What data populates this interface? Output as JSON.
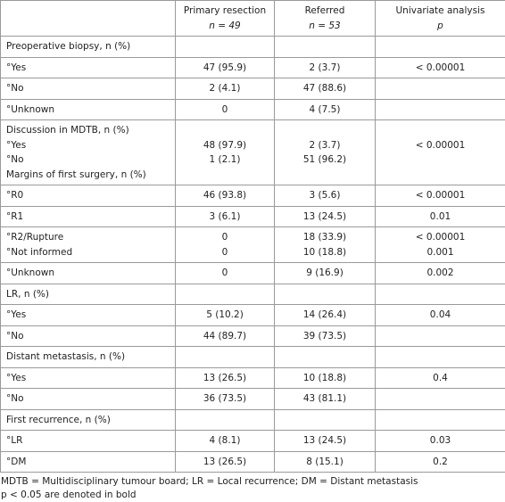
{
  "table": {
    "header": [
      [],
      [
        "Primary resection",
        "n = 49"
      ],
      [
        "Referred",
        "n = 53"
      ],
      [
        "Univariate analysis",
        "p"
      ]
    ],
    "rows": [
      [
        [
          "Preoperative biopsy, n (%)"
        ],
        [],
        [],
        []
      ],
      [
        [
          "°Yes"
        ],
        [
          "47 (95.9)"
        ],
        [
          "2 (3.7)"
        ],
        [
          "< 0.00001"
        ]
      ],
      [
        [
          "°No"
        ],
        [
          "2 (4.1)"
        ],
        [
          "47 (88.6)"
        ],
        []
      ],
      [
        [
          "°Unknown"
        ],
        [
          "0"
        ],
        [
          "4 (7.5)"
        ],
        []
      ],
      [
        [
          "Discussion in MDTB, n (%)",
          "°Yes",
          "°No",
          "Margins of first surgery, n (%)"
        ],
        [
          null,
          "48 (97.9)",
          "1 (2.1)"
        ],
        [
          null,
          "2 (3.7)",
          "51 (96.2)"
        ],
        [
          null,
          "< 0.00001"
        ]
      ],
      [
        [
          "°R0"
        ],
        [
          "46 (93.8)"
        ],
        [
          "3 (5.6)"
        ],
        [
          "< 0.00001"
        ]
      ],
      [
        [
          "°R1"
        ],
        [
          "3 (6.1)"
        ],
        [
          "13 (24.5)"
        ],
        [
          "0.01"
        ]
      ],
      [
        [
          "°R2/Rupture",
          "°Not informed"
        ],
        [
          "0",
          "0"
        ],
        [
          "18 (33.9)",
          "10 (18.8)"
        ],
        [
          "< 0.00001",
          "0.001"
        ]
      ],
      [
        [
          "°Unknown"
        ],
        [
          "0"
        ],
        [
          "9 (16.9)"
        ],
        [
          "0.002"
        ]
      ],
      [
        [
          "LR, n (%)"
        ],
        [],
        [],
        []
      ],
      [
        [
          "°Yes"
        ],
        [
          "5 (10.2)"
        ],
        [
          "14 (26.4)"
        ],
        [
          "0.04"
        ]
      ],
      [
        [
          "°No"
        ],
        [
          "44 (89.7)"
        ],
        [
          "39 (73.5)"
        ],
        []
      ],
      [
        [
          "Distant metastasis, n (%)"
        ],
        [],
        [],
        []
      ],
      [
        [
          "°Yes"
        ],
        [
          "13 (26.5)"
        ],
        [
          "10 (18.8)"
        ],
        [
          "0.4"
        ]
      ],
      [
        [
          "°No"
        ],
        [
          "36 (73.5)"
        ],
        [
          "43 (81.1)"
        ],
        []
      ],
      [
        [
          "First recurrence, n (%)"
        ],
        [],
        [],
        []
      ],
      [
        [
          "°LR"
        ],
        [
          "4 (8.1)"
        ],
        [
          "13 (24.5)"
        ],
        [
          "0.03"
        ]
      ],
      [
        [
          "°DM"
        ],
        [
          "13 (26.5)"
        ],
        [
          "8 (15.1)"
        ],
        [
          "0.2"
        ]
      ]
    ],
    "footnotes": [
      "MDTB = Multidisciplinary tumour board; LR = Local recurrence; DM = Distant metastasis",
      "p < 0.05 are denoted in bold"
    ]
  }
}
